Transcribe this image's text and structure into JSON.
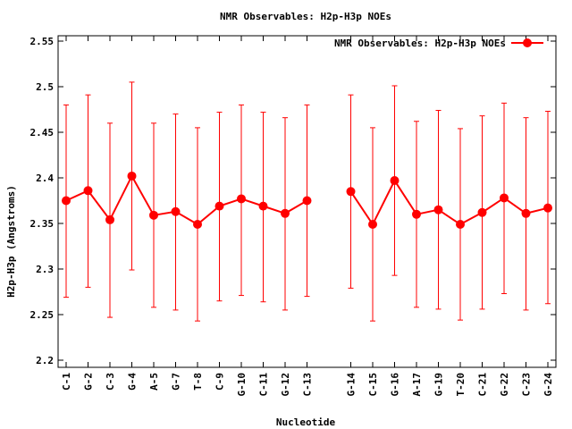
{
  "chart_data": {
    "type": "line",
    "title": "NMR Observables: H2p-H3p NOEs",
    "xlabel": "Nucleotide",
    "ylabel": "H2p-H3p (Angstroms)",
    "ylim": [
      2.2,
      2.55
    ],
    "yticks": [
      "2.2",
      "2.25",
      "2.3",
      "2.35",
      "2.4",
      "2.45",
      "2.5",
      "2.55"
    ],
    "grid": false,
    "legend_position": "top-right",
    "series": [
      {
        "name": "NMR Observables: H2p-H3p NOEs",
        "color": "#ff0000",
        "segments": [
          {
            "categories": [
              "C-1",
              "G-2",
              "C-3",
              "G-4",
              "A-5",
              "G-7",
              "T-8",
              "C-9",
              "G-10",
              "C-11",
              "G-12",
              "C-13"
            ],
            "values": [
              2.375,
              2.386,
              2.354,
              2.402,
              2.359,
              2.363,
              2.349,
              2.369,
              2.377,
              2.369,
              2.361,
              2.375
            ],
            "error_low": [
              2.269,
              2.28,
              2.247,
              2.299,
              2.258,
              2.255,
              2.243,
              2.265,
              2.271,
              2.264,
              2.255,
              2.27
            ],
            "error_high": [
              2.48,
              2.491,
              2.46,
              2.505,
              2.46,
              2.47,
              2.455,
              2.472,
              2.48,
              2.472,
              2.466,
              2.48
            ]
          },
          {
            "categories": [
              "G-14",
              "C-15",
              "G-16",
              "A-17",
              "G-19",
              "T-20",
              "C-21",
              "G-22",
              "C-23",
              "G-24"
            ],
            "values": [
              2.385,
              2.349,
              2.397,
              2.36,
              2.365,
              2.349,
              2.362,
              2.378,
              2.361,
              2.367
            ],
            "error_low": [
              2.279,
              2.243,
              2.293,
              2.258,
              2.256,
              2.244,
              2.256,
              2.273,
              2.255,
              2.262
            ],
            "error_high": [
              2.491,
              2.455,
              2.501,
              2.462,
              2.474,
              2.454,
              2.468,
              2.482,
              2.466,
              2.473
            ]
          }
        ]
      }
    ]
  }
}
